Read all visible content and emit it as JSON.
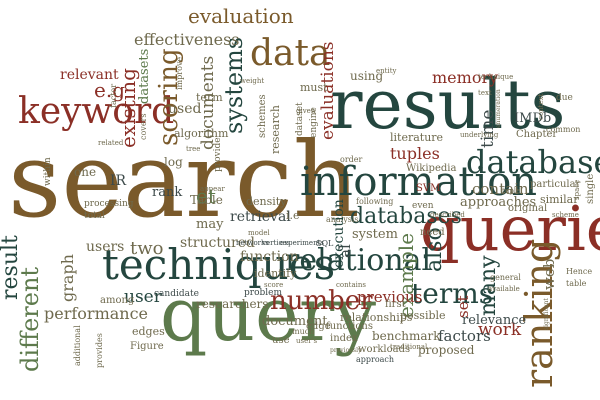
{
  "words": {
    "search": "search",
    "query": "query",
    "queries": "queries",
    "results": "results",
    "techniques": "techniques",
    "information": "information",
    "relational": "relational",
    "database": "database",
    "databases": "databases",
    "data": "data",
    "keyword": "keyword",
    "ranking": "ranking",
    "number": "number",
    "terms": "terms",
    "scoring": "scoring",
    "systems": "systems",
    "evaluation": "evaluation",
    "effectiveness": "effectiveness",
    "result": "result",
    "different": "different",
    "performance": "performance",
    "graph": "graph",
    "user": "user",
    "users": "users",
    "two": "two",
    "rank": "rank",
    "relevant": "relevant",
    "existing": "existing",
    "documents": "documents",
    "used": "used",
    "e_g": "e.g",
    "memory": "memory",
    "imdb": "IMDb",
    "tuples": "tuples",
    "evaluations": "evaluations",
    "example": "example",
    "also": "also",
    "contain": "contain",
    "approaches": "approaches",
    "work": "work",
    "relevance": "relevance",
    "factors": "factors",
    "previous": "previous",
    "retrieval": "retrieval",
    "structured": "structured",
    "function": "function",
    "document": "document",
    "benchmark": "benchmark",
    "system": "system",
    "many": "many",
    "web": "web",
    "set": "set",
    "proposed": "proposed",
    "researchers": "researchers",
    "datasets": "datasets",
    "et": "et",
    "may": "may",
    "table_cap": "Table",
    "ir": "IR",
    "one": "one",
    "log": "log",
    "al": "al",
    "using": "using",
    "must": "must",
    "term": "term",
    "algorithm": "algorithm",
    "improve": "improve",
    "weight": "weight",
    "schemes": "schemes",
    "research": "research",
    "engine": "engine",
    "dataset": "dataset",
    "execution": "execution",
    "literature": "literature",
    "wikipedia": "Wikipedia",
    "svm": "SVM",
    "need": "need",
    "particular": "particular",
    "similar": "similar",
    "original": "original",
    "chapter": "Chapter",
    "common": "common",
    "single": "single",
    "time": "time",
    "density": "density",
    "i_e": "i.e",
    "identify": "identify",
    "problem": "problem",
    "among": "among",
    "candidate": "candidate",
    "within": "within",
    "processing": "processing",
    "total": "total",
    "edges": "edges",
    "figure": "Figure",
    "additional": "additional",
    "provides": "provides",
    "functions": "functions",
    "edge": "edge",
    "relationships": "relationships",
    "possible": "possible",
    "first": "first",
    "index": "index",
    "workloads": "workloads",
    "approach": "approach",
    "sql": "SQL",
    "networks": "networks",
    "vertices": "vertices",
    "experiments": "experiments",
    "following": "following",
    "even": "even",
    "described": "described",
    "analysis": "analysis",
    "order": "order",
    "general": "general",
    "available": "available",
    "hence": "Hence",
    "table_lc": "table",
    "due": "due",
    "technique": "technique",
    "text": "text",
    "entity": "entity",
    "given": "given",
    "provide": "provide",
    "appear": "appear",
    "score": "score",
    "model": "model",
    "users_poss": "user's",
    "much": "much",
    "use": "use",
    "traditional": "traditional",
    "previously": "previously",
    "significant": "significant",
    "enumeration": "enumeration",
    "tuple": "tuple",
    "underlying": "underlying",
    "space": "space",
    "scheme": "scheme",
    "contains": "contains",
    "related": "related",
    "factor": "factor",
    "tree": "tree",
    "covers": "covers",
    "context": "context"
  }
}
